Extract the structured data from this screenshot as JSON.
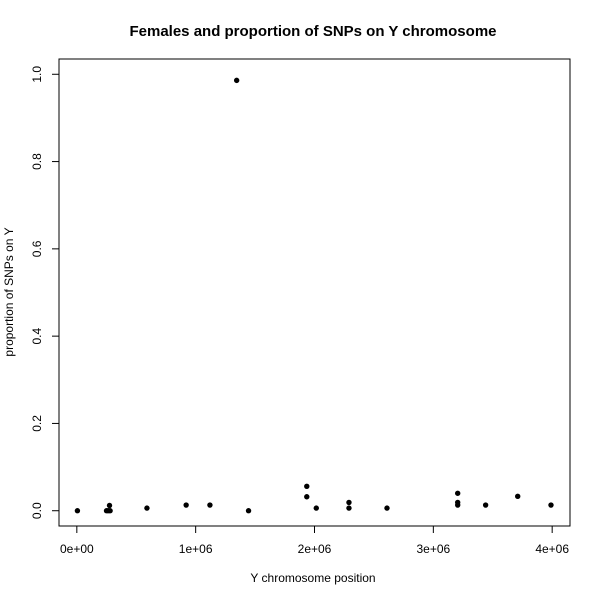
{
  "chart_data": {
    "type": "scatter",
    "title": "Females and proportion of SNPs on Y chromosome",
    "xlabel": "Y chromosome position",
    "ylabel": "proportion of SNPs on Y",
    "xlim": [
      -150000,
      4150000
    ],
    "ylim": [
      -0.035,
      1.035
    ],
    "xticks": [
      {
        "value": 0,
        "label": "0e+00"
      },
      {
        "value": 1000000,
        "label": "1e+06"
      },
      {
        "value": 2000000,
        "label": "2e+06"
      },
      {
        "value": 3000000,
        "label": "3e+06"
      },
      {
        "value": 4000000,
        "label": "4e+06"
      }
    ],
    "yticks": [
      {
        "value": 0.0,
        "label": "0.0"
      },
      {
        "value": 0.2,
        "label": "0.2"
      },
      {
        "value": 0.4,
        "label": "0.4"
      },
      {
        "value": 0.6,
        "label": "0.6"
      },
      {
        "value": 0.8,
        "label": "0.8"
      },
      {
        "value": 1.0,
        "label": "1.0"
      }
    ],
    "grid": false,
    "points": [
      {
        "x": 5000,
        "y": 0.0
      },
      {
        "x": 250000,
        "y": 0.0
      },
      {
        "x": 265000,
        "y": 0.0
      },
      {
        "x": 280000,
        "y": 0.0
      },
      {
        "x": 275000,
        "y": 0.012
      },
      {
        "x": 590000,
        "y": 0.006
      },
      {
        "x": 920000,
        "y": 0.013
      },
      {
        "x": 1120000,
        "y": 0.013
      },
      {
        "x": 1345000,
        "y": 0.986
      },
      {
        "x": 1445000,
        "y": 0.0
      },
      {
        "x": 1935000,
        "y": 0.056
      },
      {
        "x": 1935000,
        "y": 0.032
      },
      {
        "x": 2015000,
        "y": 0.006
      },
      {
        "x": 2290000,
        "y": 0.019
      },
      {
        "x": 2290000,
        "y": 0.006
      },
      {
        "x": 2610000,
        "y": 0.006
      },
      {
        "x": 3205000,
        "y": 0.04
      },
      {
        "x": 3205000,
        "y": 0.019
      },
      {
        "x": 3205000,
        "y": 0.013
      },
      {
        "x": 3440000,
        "y": 0.013
      },
      {
        "x": 3710000,
        "y": 0.033
      },
      {
        "x": 3990000,
        "y": 0.013
      }
    ]
  }
}
